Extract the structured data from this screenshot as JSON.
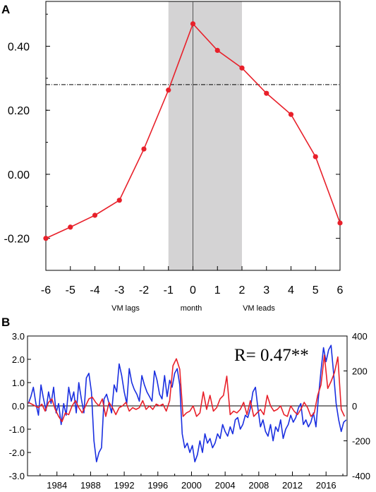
{
  "chart_data": [
    {
      "panel_label": "A",
      "type": "line",
      "x": [
        -6,
        -5,
        -4,
        -3,
        -2,
        -1,
        0,
        1,
        2,
        3,
        4,
        5,
        6
      ],
      "series": [
        {
          "values": [
            -0.2,
            -0.165,
            -0.128,
            -0.081,
            0.079,
            0.263,
            0.47,
            0.387,
            0.332,
            0.253,
            0.187,
            0.055,
            -0.152
          ],
          "color": "#e8202a"
        }
      ],
      "xticks": [
        "-6",
        "-5",
        "-4",
        "-3",
        "-2",
        "-1",
        "0",
        "1",
        "2",
        "3",
        "4",
        "5",
        "6"
      ],
      "yticks": [
        "0.40",
        "0.20",
        "0.00",
        "-0.20"
      ],
      "ytick_values": [
        0.4,
        0.2,
        0.0,
        -0.2
      ],
      "xlim": [
        -6,
        6
      ],
      "ylim": [
        -0.3,
        0.54
      ],
      "shaded_range": [
        -1,
        2
      ],
      "shade_color": "#d4d3d4",
      "threshold": 0.28,
      "vline": 0,
      "annotations": [
        "VM lags",
        "month",
        "VM leads"
      ],
      "grid": false
    },
    {
      "panel_label": "B",
      "type": "line",
      "xlim": [
        1980.5,
        2018.5
      ],
      "ylim_left": [
        -3,
        3
      ],
      "ylim_right": [
        -400,
        400
      ],
      "xticks": [
        "1984",
        "1988",
        "1992",
        "1996",
        "2000",
        "2004",
        "2008",
        "2012",
        "2016"
      ],
      "xtick_values": [
        1984,
        1988,
        1992,
        1996,
        2000,
        2004,
        2008,
        2012,
        2016
      ],
      "yticks_left": [
        "3.0",
        "2.0",
        "1.0",
        "0.0",
        "-1.0",
        "-2.0",
        "-3.0"
      ],
      "ytick_left_values": [
        3,
        2,
        1,
        0,
        -1,
        -2,
        -3
      ],
      "yticks_right": [
        "400",
        "200",
        "0",
        "-200",
        "-400"
      ],
      "ytick_right_values": [
        400,
        200,
        0,
        -200,
        -400
      ],
      "annotation": "R= 0.47**",
      "zero_line": true,
      "grid": false,
      "series": [
        {
          "color": "#1a2fe0",
          "axis": "left",
          "x": [
            1980.6,
            1980.9,
            1981.2,
            1981.5,
            1981.8,
            1982.1,
            1982.4,
            1982.7,
            1983.0,
            1983.3,
            1983.6,
            1983.9,
            1984.2,
            1984.5,
            1984.8,
            1985.1,
            1985.4,
            1985.7,
            1986.0,
            1986.3,
            1986.6,
            1986.9,
            1987.2,
            1987.5,
            1987.8,
            1988.1,
            1988.4,
            1988.7,
            1989.0,
            1989.3,
            1989.6,
            1989.9,
            1990.2,
            1990.5,
            1990.8,
            1991.1,
            1991.4,
            1991.7,
            1992.0,
            1992.3,
            1992.6,
            1992.9,
            1993.2,
            1993.5,
            1993.8,
            1994.1,
            1994.4,
            1994.7,
            1995.0,
            1995.3,
            1995.6,
            1995.9,
            1996.2,
            1996.5,
            1996.8,
            1997.1,
            1997.4,
            1997.7,
            1998.0,
            1998.3,
            1998.6,
            1998.9,
            1999.2,
            1999.5,
            1999.8,
            2000.1,
            2000.4,
            2000.7,
            2001.0,
            2001.3,
            2001.6,
            2001.9,
            2002.2,
            2002.5,
            2002.8,
            2003.1,
            2003.4,
            2003.7,
            2004.0,
            2004.3,
            2004.6,
            2004.9,
            2005.2,
            2005.5,
            2005.8,
            2006.1,
            2006.4,
            2006.7,
            2007.0,
            2007.3,
            2007.6,
            2007.9,
            2008.2,
            2008.5,
            2008.8,
            2009.1,
            2009.4,
            2009.7,
            2010.0,
            2010.3,
            2010.6,
            2010.9,
            2011.2,
            2011.5,
            2011.8,
            2012.1,
            2012.4,
            2012.7,
            2013.0,
            2013.3,
            2013.6,
            2013.9,
            2014.2,
            2014.5,
            2014.8,
            2015.1,
            2015.4,
            2015.7,
            2016.0,
            2016.3,
            2016.6,
            2016.9,
            2017.2,
            2017.5,
            2017.8,
            2018.1,
            2018.4
          ],
          "values": [
            0.1,
            0.4,
            0.8,
            0.1,
            -0.4,
            0.9,
            0.3,
            -0.2,
            0.6,
            0.1,
            0.8,
            -0.3,
            0.1,
            -0.8,
            0.1,
            -0.4,
            0.8,
            0.2,
            0.6,
            -0.3,
            1.0,
            0.3,
            -0.3,
            1.2,
            1.4,
            0.6,
            -1.5,
            -2.4,
            -2.0,
            -1.8,
            0.3,
            0.5,
            0.1,
            -0.3,
            0.9,
            0.6,
            1.8,
            1.3,
            0.6,
            0.1,
            1.6,
            1.0,
            0.7,
            0.5,
            0.2,
            1.3,
            0.9,
            0.6,
            0.4,
            0.2,
            1.5,
            1.1,
            0.5,
            0.3,
            1.3,
            0.4,
            1.1,
            0.8,
            1.4,
            1.6,
            0.9,
            -1.2,
            -1.8,
            -1.6,
            -2.0,
            -1.7,
            -2.4,
            -2.1,
            -1.5,
            -2.0,
            -1.2,
            -1.6,
            -1.4,
            -1.8,
            -1.6,
            -1.2,
            -1.4,
            -0.8,
            -1.1,
            -1.3,
            -0.9,
            -1.2,
            -0.6,
            -0.5,
            -1.0,
            -0.8,
            -0.4,
            -0.5,
            -0.1,
            0.6,
            0.8,
            -0.1,
            -0.9,
            -0.6,
            -1.1,
            -1.3,
            -0.8,
            -1.5,
            -0.9,
            -1.1,
            -0.6,
            -1.4,
            -1.0,
            -0.8,
            -0.4,
            -0.7,
            -0.5,
            -0.1,
            0.1,
            -0.8,
            -0.6,
            -0.9,
            -0.7,
            -0.3,
            -0.9,
            0.4,
            1.5,
            2.5,
            1.9,
            2.4,
            2.6,
            1.4,
            0.1,
            -0.6,
            -1.1,
            -0.7,
            -0.6
          ],
          "values_note": ""
        },
        {
          "color": "#e8202a",
          "axis": "right",
          "x": [
            1980.6,
            1981.0,
            1981.4,
            1981.8,
            1982.2,
            1982.6,
            1983.0,
            1983.4,
            1983.8,
            1984.2,
            1984.6,
            1985.0,
            1985.4,
            1985.8,
            1986.2,
            1986.6,
            1987.0,
            1987.4,
            1987.8,
            1988.2,
            1988.6,
            1989.0,
            1989.4,
            1989.8,
            1990.2,
            1990.6,
            1991.0,
            1991.4,
            1991.8,
            1992.2,
            1992.6,
            1993.0,
            1993.4,
            1993.8,
            1994.2,
            1994.6,
            1995.0,
            1995.4,
            1995.8,
            1996.2,
            1996.6,
            1997.0,
            1997.4,
            1997.8,
            1998.2,
            1998.6,
            1999.0,
            1999.4,
            1999.8,
            2000.2,
            2000.6,
            2001.0,
            2001.4,
            2001.8,
            2002.2,
            2002.6,
            2003.0,
            2003.4,
            2003.8,
            2004.2,
            2004.6,
            2005.0,
            2005.4,
            2005.8,
            2006.2,
            2006.6,
            2007.0,
            2007.4,
            2007.8,
            2008.2,
            2008.6,
            2009.0,
            2009.4,
            2009.8,
            2010.2,
            2010.6,
            2011.0,
            2011.4,
            2011.8,
            2012.2,
            2012.6,
            2013.0,
            2013.4,
            2013.8,
            2014.2,
            2014.6,
            2015.0,
            2015.4,
            2015.8,
            2016.2,
            2016.6,
            2017.0,
            2017.4,
            2017.8,
            2018.2
          ],
          "values": [
            20,
            10,
            0,
            -10,
            10,
            -30,
            20,
            40,
            -20,
            -60,
            -90,
            -40,
            -50,
            0,
            30,
            -10,
            -40,
            0,
            40,
            50,
            20,
            0,
            40,
            -60,
            20,
            -10,
            -50,
            -10,
            0,
            20,
            -30,
            -10,
            -20,
            -10,
            30,
            -20,
            0,
            -20,
            10,
            0,
            10,
            -30,
            30,
            230,
            270,
            210,
            -60,
            -40,
            -30,
            0,
            -60,
            -40,
            80,
            -20,
            60,
            -30,
            -10,
            40,
            60,
            170,
            -50,
            -30,
            -40,
            -20,
            20,
            -50,
            30,
            -60,
            -40,
            -20,
            -50,
            60,
            0,
            -30,
            -20,
            0,
            -50,
            -60,
            0,
            -30,
            -50,
            -20,
            20,
            -10,
            -60,
            -40,
            60,
            120,
            290,
            100,
            140,
            190,
            280,
            -20,
            -60
          ]
        }
      ]
    }
  ]
}
